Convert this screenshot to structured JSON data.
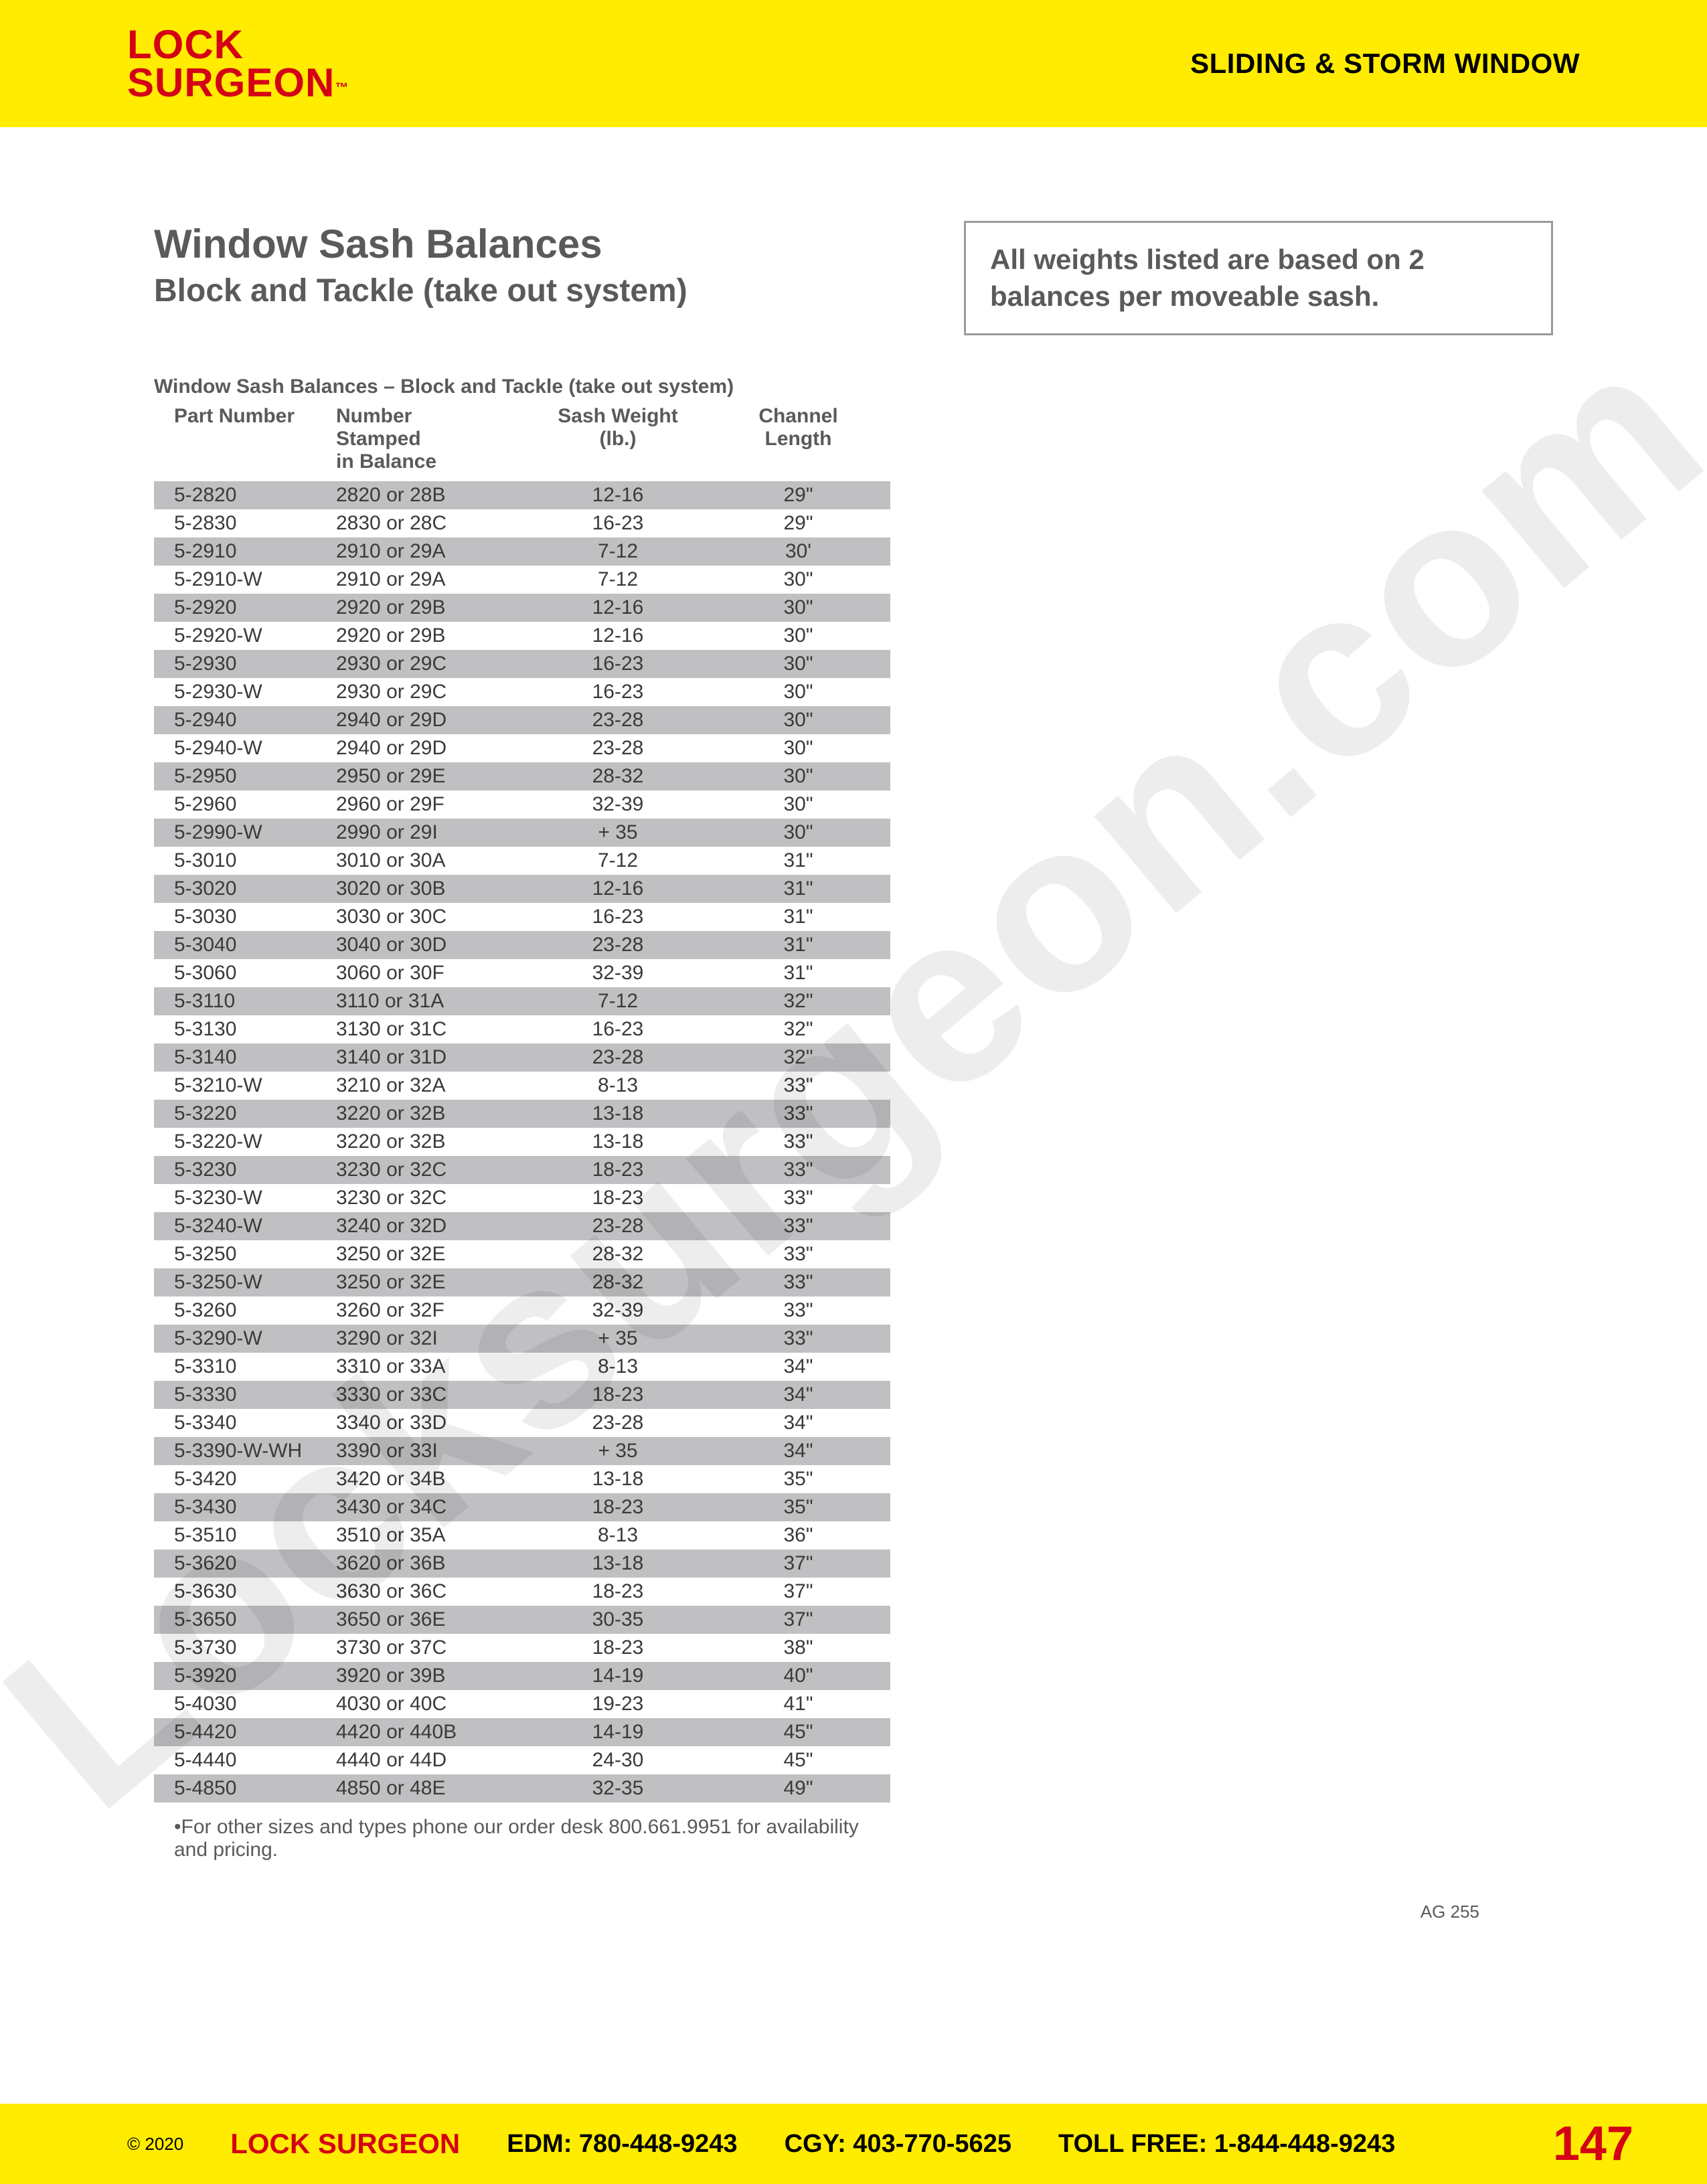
{
  "header": {
    "logo_line1": "LOCK",
    "logo_line2": "SURGEON",
    "logo_tm": "™",
    "section": "SLIDING & STORM WINDOW"
  },
  "title": {
    "main": "Window Sash Balances",
    "sub": "Block and Tackle (take out system)"
  },
  "note": "All weights listed are based on 2 balances per moveable sash.",
  "table": {
    "caption": "Window Sash Balances – Block and Tackle (take out system)",
    "columns": [
      "Part Number",
      "Number Stamped in Balance",
      "Sash Weight (lb.)",
      "Channel Length"
    ],
    "col_widths_pct": [
      24,
      27,
      24,
      25
    ],
    "row_shaded_color": "#c0c0c3",
    "row_plain_color": "#ffffff",
    "text_color": "#3a3a3a",
    "header_color": "#5a5a5a",
    "fontsize": 30,
    "rows": [
      [
        "5-2820",
        "2820 or 28B",
        "12-16",
        "29\""
      ],
      [
        "5-2830",
        "2830 or 28C",
        "16-23",
        "29\""
      ],
      [
        "5-2910",
        "2910 or 29A",
        "7-12",
        "30'"
      ],
      [
        "5-2910-W",
        "2910 or 29A",
        "7-12",
        "30\""
      ],
      [
        "5-2920",
        "2920 or 29B",
        "12-16",
        "30\""
      ],
      [
        "5-2920-W",
        "2920 or 29B",
        "12-16",
        "30\""
      ],
      [
        "5-2930",
        "2930 or 29C",
        "16-23",
        "30\""
      ],
      [
        "5-2930-W",
        "2930 or 29C",
        "16-23",
        "30\""
      ],
      [
        "5-2940",
        "2940 or 29D",
        "23-28",
        "30\""
      ],
      [
        "5-2940-W",
        "2940 or 29D",
        "23-28",
        "30\""
      ],
      [
        "5-2950",
        "2950 or 29E",
        "28-32",
        "30\""
      ],
      [
        "5-2960",
        "2960 or 29F",
        "32-39",
        "30\""
      ],
      [
        "5-2990-W",
        "2990 or 29I",
        "+ 35",
        "30\""
      ],
      [
        "5-3010",
        "3010 or 30A",
        "7-12",
        "31\""
      ],
      [
        "5-3020",
        "3020 or 30B",
        "12-16",
        "31\""
      ],
      [
        "5-3030",
        "3030 or 30C",
        "16-23",
        "31\""
      ],
      [
        "5-3040",
        "3040 or 30D",
        "23-28",
        "31\""
      ],
      [
        "5-3060",
        "3060 or 30F",
        "32-39",
        "31\""
      ],
      [
        "5-3110",
        "3110 or 31A",
        "7-12",
        "32\""
      ],
      [
        "5-3130",
        "3130 or 31C",
        "16-23",
        "32\""
      ],
      [
        "5-3140",
        "3140 or 31D",
        "23-28",
        "32\""
      ],
      [
        "5-3210-W",
        "3210 or 32A",
        "8-13",
        "33\""
      ],
      [
        "5-3220",
        "3220 or 32B",
        "13-18",
        "33\""
      ],
      [
        "5-3220-W",
        "3220 or 32B",
        "13-18",
        "33\""
      ],
      [
        "5-3230",
        "3230 or 32C",
        "18-23",
        "33\""
      ],
      [
        "5-3230-W",
        "3230 or 32C",
        "18-23",
        "33\""
      ],
      [
        "5-3240-W",
        "3240 or 32D",
        "23-28",
        "33\""
      ],
      [
        "5-3250",
        "3250 or 32E",
        "28-32",
        "33\""
      ],
      [
        "5-3250-W",
        "3250 or 32E",
        "28-32",
        "33\""
      ],
      [
        "5-3260",
        "3260 or 32F",
        "32-39",
        "33\""
      ],
      [
        "5-3290-W",
        "3290 or 32I",
        "+ 35",
        "33\""
      ],
      [
        "5-3310",
        "3310 or 33A",
        "8-13",
        "34\""
      ],
      [
        "5-3330",
        "3330 or 33C",
        "18-23",
        "34\""
      ],
      [
        "5-3340",
        "3340 or 33D",
        "23-28",
        "34\""
      ],
      [
        "5-3390-W-WH",
        "3390 or 33I",
        "+ 35",
        "34\""
      ],
      [
        "5-3420",
        "3420 or 34B",
        "13-18",
        "35\""
      ],
      [
        "5-3430",
        "3430 or 34C",
        "18-23",
        "35\""
      ],
      [
        "5-3510",
        "3510 or 35A",
        "8-13",
        "36\""
      ],
      [
        "5-3620",
        "3620 or 36B",
        "13-18",
        "37\""
      ],
      [
        "5-3630",
        "3630 or 36C",
        "18-23",
        "37\""
      ],
      [
        "5-3650",
        "3650 or 36E",
        "30-35",
        "37\""
      ],
      [
        "5-3730",
        "3730 or 37C",
        "18-23",
        "38\""
      ],
      [
        "5-3920",
        "3920 or 39B",
        "14-19",
        "40\""
      ],
      [
        "5-4030",
        "4030 or 40C",
        "19-23",
        "41\""
      ],
      [
        "5-4420",
        "4420 or 440B",
        "14-19",
        "45\""
      ],
      [
        "5-4440",
        "4440 or 44D",
        "24-30",
        "45\""
      ],
      [
        "5-4850",
        "4850 or 48E",
        "32-35",
        "49\""
      ]
    ]
  },
  "footnote": "•For other sizes and types phone our order desk 800.661.9951 for availability and pricing.",
  "ag_code": "AG 255",
  "footer": {
    "copyright": "© 2020",
    "brand": "LOCK SURGEON",
    "edm": "EDM: 780-448-9243",
    "cgy": "CGY: 403-770-5625",
    "tollfree": "TOLL FREE: 1-844-448-9243",
    "page": "147"
  },
  "watermark": "Locksurgeon.com",
  "colors": {
    "brand_yellow": "#ffec00",
    "brand_red": "#d40016",
    "text_gray": "#5a5a5a",
    "border_gray": "#9a9a9a"
  }
}
